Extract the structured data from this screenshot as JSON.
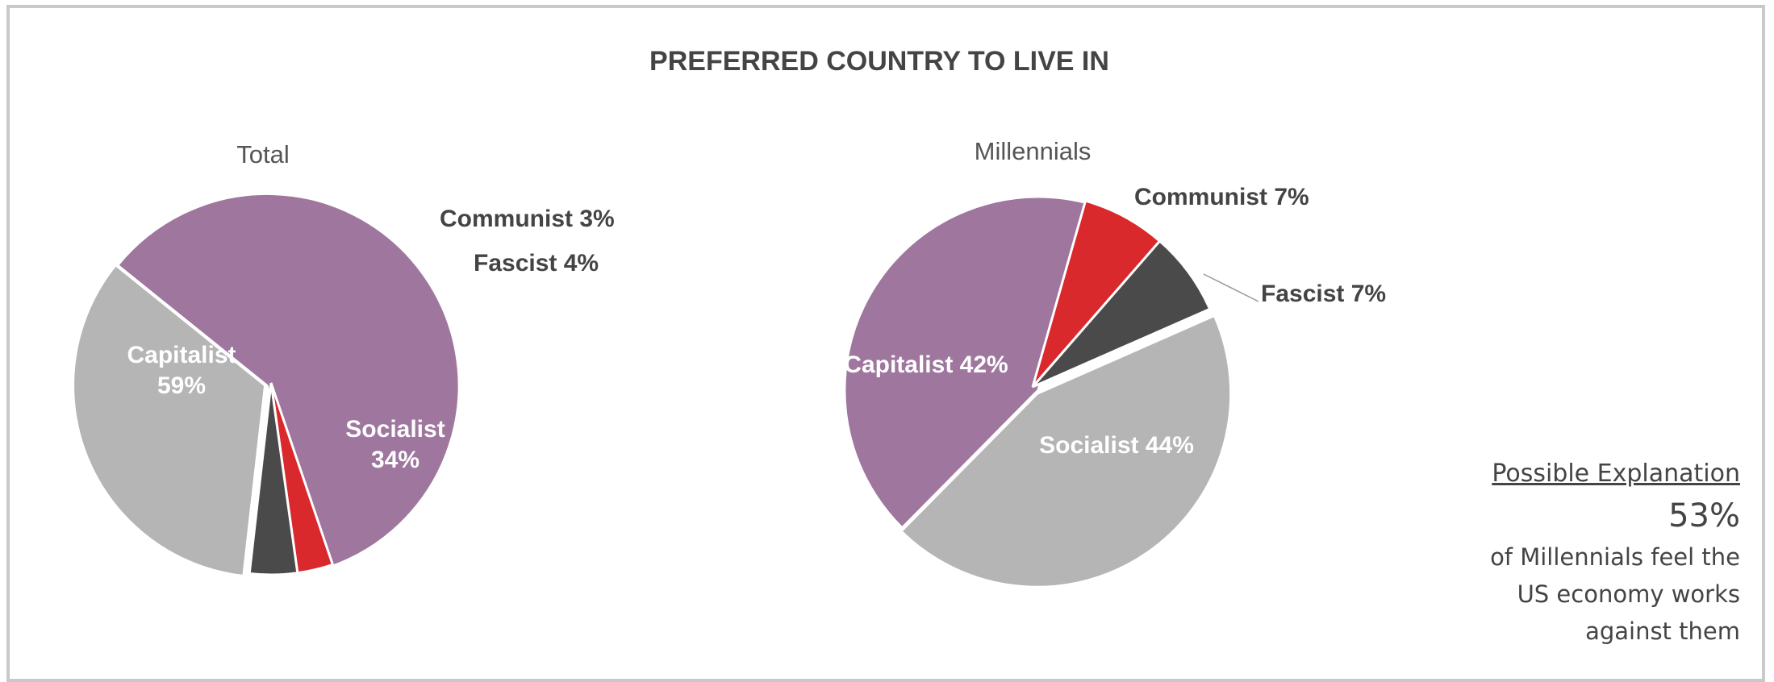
{
  "chart_data": [
    {
      "type": "pie",
      "title": "PREFERRED COUNTRY TO LIVE IN",
      "subtitle": "Total",
      "slices": [
        {
          "label": "Capitalist",
          "value": 59,
          "display": "59%",
          "color": "#9e769e"
        },
        {
          "label": "Communist",
          "value": 3,
          "display": "3%",
          "color": "#d9292d"
        },
        {
          "label": "Fascist",
          "value": 4,
          "display": "4%",
          "color": "#4a4a4a"
        },
        {
          "label": "Socialist",
          "value": 34,
          "display": "34%",
          "color": "#b5b5b5"
        }
      ]
    },
    {
      "type": "pie",
      "subtitle": "Millennials",
      "slices": [
        {
          "label": "Capitalist",
          "value": 42,
          "display": "42%",
          "color": "#9e769e"
        },
        {
          "label": "Communist",
          "value": 7,
          "display": "7%",
          "color": "#d9292d"
        },
        {
          "label": "Fascist",
          "value": 7,
          "display": "7%",
          "color": "#4a4a4a"
        },
        {
          "label": "Socialist",
          "value": 44,
          "display": "44%",
          "color": "#b5b5b5"
        }
      ]
    }
  ],
  "note": {
    "heading": "Possible Explanation",
    "stat": "53%",
    "lines": [
      "of Millennials feel the",
      "US economy works",
      "against them"
    ]
  }
}
